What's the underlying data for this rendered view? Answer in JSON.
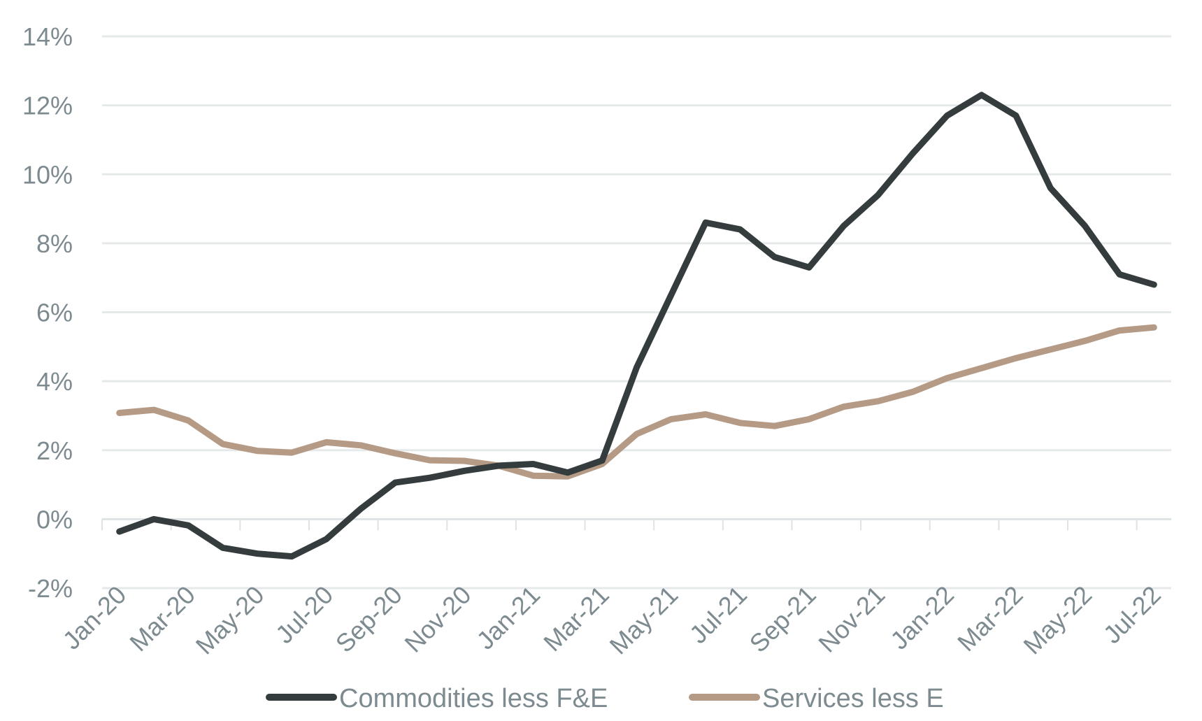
{
  "chart_data": {
    "type": "line",
    "title": "",
    "xlabel": "",
    "ylabel": "",
    "ylim": [
      -2,
      14
    ],
    "y_ticks": [
      "-2%",
      "0%",
      "2%",
      "4%",
      "6%",
      "8%",
      "10%",
      "12%",
      "14%"
    ],
    "y_tick_values": [
      -2,
      0,
      2,
      4,
      6,
      8,
      10,
      12,
      14
    ],
    "grid": "horizontal",
    "legend_position": "bottom",
    "categories": [
      "Jan-20",
      "Feb-20",
      "Mar-20",
      "Apr-20",
      "May-20",
      "Jun-20",
      "Jul-20",
      "Aug-20",
      "Sep-20",
      "Oct-20",
      "Nov-20",
      "Dec-20",
      "Jan-21",
      "Feb-21",
      "Mar-21",
      "Apr-21",
      "May-21",
      "Jun-21",
      "Jul-21",
      "Aug-21",
      "Sep-21",
      "Oct-21",
      "Nov-21",
      "Dec-21",
      "Jan-22",
      "Feb-22",
      "Mar-22",
      "Apr-22",
      "May-22",
      "Jun-22",
      "Jul-22"
    ],
    "x_tick_labels": [
      "Jan-20",
      "Mar-20",
      "May-20",
      "Jul-20",
      "Sep-20",
      "Nov-20",
      "Jan-21",
      "Mar-21",
      "May-21",
      "Jul-21",
      "Sep-21",
      "Nov-21",
      "Jan-22",
      "Mar-22",
      "May-22",
      "Jul-22"
    ],
    "series": [
      {
        "name": "Commodities less F&E",
        "color": "#343c3e",
        "values": [
          -0.36,
          0,
          -0.18,
          -0.83,
          -1.0,
          -1.08,
          -0.58,
          0.3,
          1.06,
          1.2,
          1.4,
          1.55,
          1.6,
          1.35,
          1.7,
          4.4,
          6.5,
          8.6,
          8.4,
          7.6,
          7.3,
          8.5,
          9.4,
          10.6,
          11.7,
          12.3,
          11.7,
          9.6,
          8.5,
          7.1,
          6.8
        ]
      },
      {
        "name": "Services less E",
        "color": "#b59a85",
        "values": [
          3.08,
          3.17,
          2.86,
          2.18,
          1.98,
          1.93,
          2.23,
          2.14,
          1.91,
          1.71,
          1.69,
          1.55,
          1.26,
          1.24,
          1.6,
          2.47,
          2.9,
          3.04,
          2.79,
          2.7,
          2.9,
          3.26,
          3.42,
          3.69,
          4.09,
          4.38,
          4.67,
          4.92,
          5.17,
          5.47,
          5.56
        ]
      }
    ]
  }
}
